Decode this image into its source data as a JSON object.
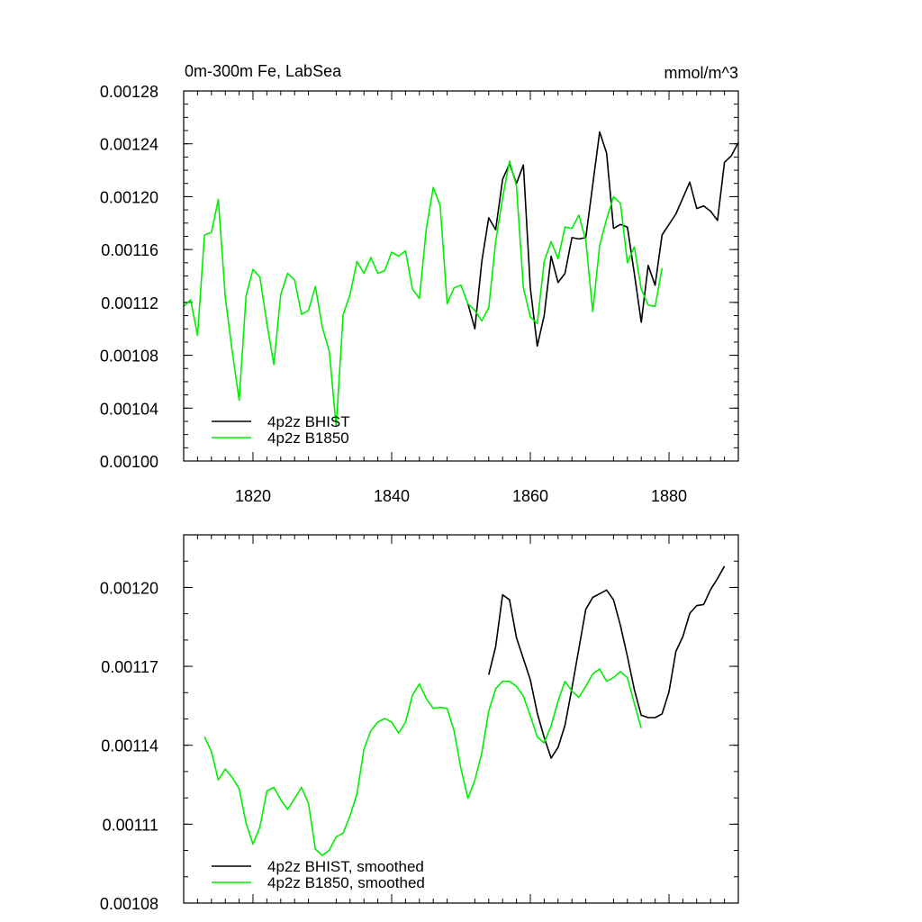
{
  "chart_data": [
    {
      "type": "line",
      "title": "0m-300m Fe, LabSea",
      "units": "mmol/m^3",
      "xlim": [
        1810,
        1890
      ],
      "ylim": [
        0.001,
        0.00128
      ],
      "x_ticks": [
        1820,
        1840,
        1860,
        1880
      ],
      "x_tick_labels": [
        "1820",
        "1840",
        "1860",
        "1880"
      ],
      "y_ticks": [
        0.001,
        0.00104,
        0.00108,
        0.00112,
        0.00116,
        0.0012,
        0.00124,
        0.00128
      ],
      "y_tick_labels": [
        "0.00100",
        "0.00104",
        "0.00108",
        "0.00112",
        "0.00116",
        "0.00120",
        "0.00124",
        "0.00128"
      ],
      "legend_position": "bottom-left",
      "series": [
        {
          "name": "4p2z BHIST",
          "color": "#000000",
          "x_start": 1851,
          "values": [
            0.001119,
            0.0011,
            0.001151,
            0.001184,
            0.001175,
            0.001213,
            0.001225,
            0.00121,
            0.001224,
            0.001131,
            0.001087,
            0.00111,
            0.001155,
            0.001135,
            0.001142,
            0.001169,
            0.001168,
            0.001169,
            0.001209,
            0.001249,
            0.001233,
            0.001176,
            0.001179,
            0.001177,
            0.001142,
            0.001105,
            0.001148,
            0.001133,
            0.001171,
            0.001179,
            0.001187,
            0.001199,
            0.001211,
            0.001191,
            0.001193,
            0.001189,
            0.001182,
            0.001226,
            0.001231,
            0.001241
          ]
        },
        {
          "name": "4p2z B1850",
          "color": "#00ee00",
          "x_start": 1810,
          "values": [
            0.001117,
            0.001122,
            0.001095,
            0.001171,
            0.001173,
            0.001198,
            0.001124,
            0.001083,
            0.001046,
            0.001125,
            0.001145,
            0.001139,
            0.001104,
            0.001073,
            0.001126,
            0.001142,
            0.001137,
            0.001111,
            0.001114,
            0.001132,
            0.001101,
            0.001083,
            0.001026,
            0.001111,
            0.001126,
            0.001151,
            0.001142,
            0.001154,
            0.001142,
            0.001144,
            0.001158,
            0.001155,
            0.001159,
            0.00113,
            0.001123,
            0.001176,
            0.001207,
            0.001193,
            0.001119,
            0.001131,
            0.001133,
            0.001119,
            0.001114,
            0.001106,
            0.001116,
            0.001166,
            0.001199,
            0.001227,
            0.001208,
            0.001131,
            0.001109,
            0.001104,
            0.001151,
            0.001166,
            0.001153,
            0.001177,
            0.001176,
            0.001186,
            0.001167,
            0.001113,
            0.001163,
            0.001183,
            0.0012,
            0.001195,
            0.00115,
            0.001162,
            0.00113,
            0.001118,
            0.001117,
            0.001146
          ]
        }
      ]
    },
    {
      "type": "line",
      "title": "",
      "xlim": [
        1810,
        1890
      ],
      "ylim": [
        0.00108,
        0.00122
      ],
      "x_ticks": [
        1820,
        1840,
        1860,
        1880
      ],
      "x_tick_labels": [],
      "y_ticks": [
        0.00108,
        0.00111,
        0.00114,
        0.00117,
        0.0012
      ],
      "y_tick_labels": [
        "0.00108",
        "0.00111",
        "0.00114",
        "0.00117",
        "0.00120"
      ],
      "legend_position": "bottom-left",
      "series": [
        {
          "name": "4p2z BHIST, smoothed",
          "color": "#000000",
          "x_start": 1854,
          "values": [
            0.0011668,
            0.0011775,
            0.0011972,
            0.0011953,
            0.0011809,
            0.0011729,
            0.0011649,
            0.0011522,
            0.001143,
            0.0011351,
            0.0011392,
            0.0011476,
            0.0011617,
            0.0011767,
            0.0011917,
            0.0011962,
            0.0011976,
            0.001199,
            0.0011953,
            0.0011855,
            0.0011738,
            0.0011612,
            0.0011514,
            0.0011505,
            0.0011505,
            0.0011519,
            0.0011603,
            0.0011757,
            0.0011813,
            0.0011902,
            0.0011931,
            0.0011935,
            0.0011992,
            0.0012034,
            0.0012081
          ]
        },
        {
          "name": "4p2z B1850, smoothed",
          "color": "#00ee00",
          "x_start": 1813,
          "values": [
            0.0011432,
            0.0011376,
            0.0011268,
            0.001131,
            0.0011277,
            0.0011235,
            0.0011104,
            0.0011024,
            0.001109,
            0.0011226,
            0.001124,
            0.0011193,
            0.0011156,
            0.0011198,
            0.001124,
            0.0011179,
            0.0011005,
            0.0010981,
            0.0011001,
            0.0011052,
            0.0011066,
            0.0011132,
            0.0011216,
            0.0011385,
            0.0011455,
            0.0011488,
            0.0011502,
            0.0011488,
            0.0011446,
            0.0011488,
            0.0011591,
            0.0011633,
            0.0011577,
            0.001154,
            0.0011544,
            0.001154,
            0.0011455,
            0.001131,
            0.0011198,
            0.0011268,
            0.0011371,
            0.001153,
            0.0011615,
            0.0011643,
            0.0011643,
            0.0011624,
            0.0011587,
            0.0011512,
            0.0011432,
            0.0011409,
            0.0011474,
            0.0011568,
            0.0011643,
            0.0011606,
            0.0011582,
            0.0011624,
            0.0011671,
            0.001169,
            0.0011643,
            0.0011657,
            0.001168,
            0.0011657,
            0.0011559,
            0.0011465
          ]
        }
      ]
    }
  ]
}
